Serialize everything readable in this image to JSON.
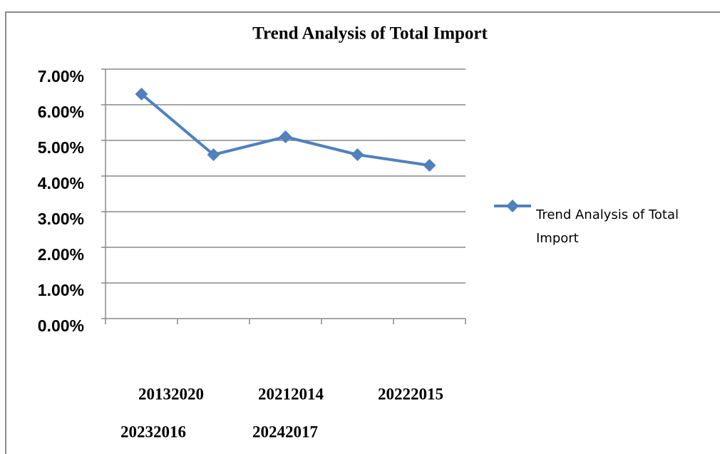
{
  "chart_data": {
    "type": "line",
    "title": "Trend Analysis of Total Import",
    "categories": [
      "20132020",
      "20212014",
      "20222015",
      "20232016",
      "20242017"
    ],
    "series": [
      {
        "name": "Trend Analysis of Total Import",
        "color": "#4f81bd",
        "values": [
          6.3,
          4.6,
          5.1,
          4.6,
          4.3
        ]
      }
    ],
    "ylim": [
      0,
      7
    ],
    "yticks": [
      {
        "value": 0,
        "label": "0.00%"
      },
      {
        "value": 1,
        "label": "1.00%"
      },
      {
        "value": 2,
        "label": "2.00%"
      },
      {
        "value": 3,
        "label": "3.00%"
      },
      {
        "value": 4,
        "label": "4.00%"
      },
      {
        "value": 5,
        "label": "5.00%"
      },
      {
        "value": 6,
        "label": "6.00%"
      },
      {
        "value": 7,
        "label": "7.00%"
      }
    ],
    "grid": true,
    "legend": "right"
  }
}
